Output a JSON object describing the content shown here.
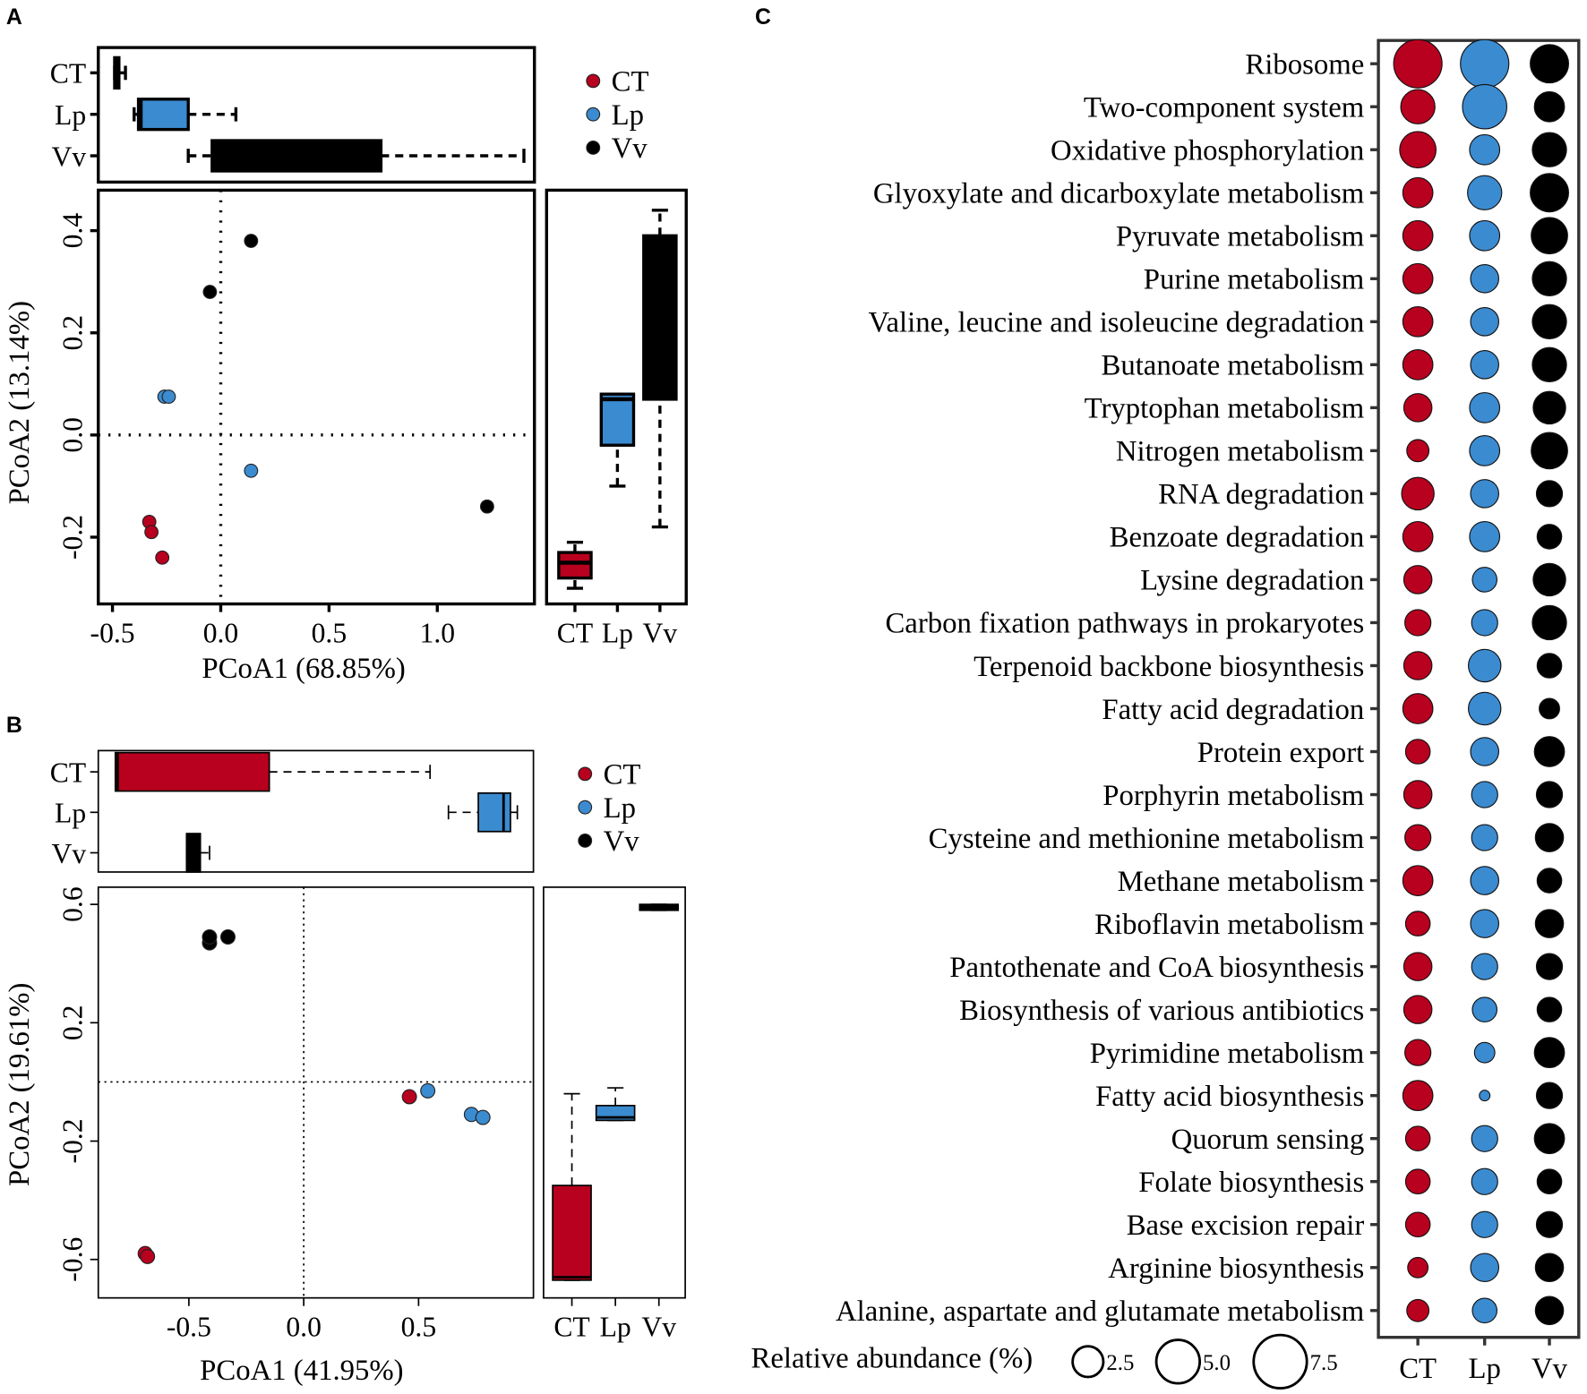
{
  "colors": {
    "CT": "#b8001f",
    "Lp": "#3b8bd0",
    "Vv": "#000000"
  },
  "panel_labels": {
    "A": "A",
    "B": "B",
    "C": "C"
  },
  "chart_data": [
    {
      "type": "scatter",
      "panel": "A",
      "xlabel": "PCoA1 (68.85%)",
      "ylabel": "PCoA2 (13.14%)",
      "xticks": [
        "-0.5",
        "0.0",
        "0.5",
        "1.0"
      ],
      "xtick_values": [
        -0.5,
        0.0,
        0.5,
        1.0
      ],
      "yticks": [
        "0.4",
        "0.2",
        "0.0",
        "-0.2"
      ],
      "ytick_values": [
        0.4,
        0.2,
        0.0,
        -0.2
      ],
      "legend": [
        "CT",
        "Lp",
        "Vv"
      ],
      "legend_position": "top-right",
      "series": [
        {
          "name": "CT",
          "points": [
            [
              -0.33,
              -0.17
            ],
            [
              -0.32,
              -0.19
            ],
            [
              -0.27,
              -0.24
            ]
          ]
        },
        {
          "name": "Lp",
          "points": [
            [
              -0.26,
              0.075
            ],
            [
              -0.24,
              0.075
            ],
            [
              0.14,
              -0.07
            ]
          ]
        },
        {
          "name": "Vv",
          "points": [
            [
              -0.05,
              0.28
            ],
            [
              0.14,
              0.38
            ],
            [
              1.23,
              -0.14
            ]
          ]
        }
      ],
      "top_boxplot": [
        {
          "group": "CT",
          "min": -0.49,
          "q1": -0.49,
          "median": -0.48,
          "q3": -0.47,
          "max": -0.44
        },
        {
          "group": "Lp",
          "min": -0.4,
          "q1": -0.38,
          "median": -0.37,
          "q3": -0.15,
          "max": 0.07
        },
        {
          "group": "Vv",
          "min": -0.15,
          "q1": -0.04,
          "median": 0.3,
          "q3": 0.74,
          "max": 1.4
        }
      ],
      "right_boxplot": [
        {
          "group": "CT",
          "min": -0.3,
          "q1": -0.28,
          "median": -0.25,
          "q3": -0.23,
          "max": -0.21
        },
        {
          "group": "Lp",
          "min": -0.1,
          "q1": -0.02,
          "median": 0.07,
          "q3": 0.08,
          "max": 0.08
        },
        {
          "group": "Vv",
          "min": -0.18,
          "q1": 0.07,
          "median": 0.38,
          "q3": 0.39,
          "max": 0.44
        }
      ],
      "box_labels": [
        "CT",
        "Lp",
        "Vv"
      ]
    },
    {
      "type": "scatter",
      "panel": "B",
      "xlabel": "PCoA1 (41.95%)",
      "ylabel": "PCoA2 (19.61%)",
      "xticks": [
        "-0.5",
        "0.0",
        "0.5"
      ],
      "xtick_values": [
        -0.5,
        0.0,
        0.5
      ],
      "yticks": [
        "0.6",
        "0.2",
        "-0.2",
        "-0.6"
      ],
      "ytick_values": [
        0.6,
        0.2,
        -0.2,
        -0.6
      ],
      "legend": [
        "CT",
        "Lp",
        "Vv"
      ],
      "legend_position": "top-right",
      "series": [
        {
          "name": "CT",
          "points": [
            [
              -0.69,
              -0.58
            ],
            [
              -0.68,
              -0.59
            ],
            [
              0.46,
              -0.05
            ]
          ]
        },
        {
          "name": "Lp",
          "points": [
            [
              0.54,
              -0.03
            ],
            [
              0.73,
              -0.11
            ],
            [
              0.78,
              -0.12
            ]
          ]
        },
        {
          "name": "Vv",
          "points": [
            [
              -0.41,
              0.47
            ],
            [
              -0.41,
              0.49
            ],
            [
              -0.33,
              0.49
            ]
          ]
        }
      ],
      "top_boxplot": [
        {
          "group": "CT",
          "min": -0.82,
          "q1": -0.82,
          "median": -0.81,
          "q3": -0.15,
          "max": 0.55
        },
        {
          "group": "Lp",
          "min": 0.63,
          "q1": 0.76,
          "median": 0.87,
          "q3": 0.9,
          "max": 0.93
        },
        {
          "group": "Vv",
          "min": -0.51,
          "q1": -0.51,
          "median": -0.48,
          "q3": -0.45,
          "max": -0.41
        }
      ],
      "right_boxplot": [
        {
          "group": "CT",
          "min": -0.67,
          "q1": -0.67,
          "median": -0.66,
          "q3": -0.35,
          "max": -0.04
        },
        {
          "group": "Lp",
          "min": -0.13,
          "q1": -0.13,
          "median": -0.12,
          "q3": -0.08,
          "max": -0.02
        },
        {
          "group": "Vv",
          "min": 0.58,
          "q1": 0.58,
          "median": 0.59,
          "q3": 0.6,
          "max": 0.6
        }
      ],
      "box_labels": [
        "CT",
        "Lp",
        "Vv"
      ]
    },
    {
      "type": "scatter",
      "subtype": "bubble",
      "panel": "C",
      "columns": [
        "CT",
        "Lp",
        "Vv"
      ],
      "size_legend_title": "Relative abundance (%)",
      "size_legend": [
        {
          "value": 2.5,
          "label": "2.5"
        },
        {
          "value": 5.0,
          "label": "5.0"
        },
        {
          "value": 7.5,
          "label": "7.5"
        }
      ],
      "rows": [
        {
          "pathway": "Ribosome",
          "values": [
            6.2,
            6.2,
            3.9
          ]
        },
        {
          "pathway": "Two-component system",
          "values": [
            3.1,
            5.2,
            2.4
          ]
        },
        {
          "pathway": "Oxidative phosphorylation",
          "values": [
            3.5,
            2.4,
            3.1
          ]
        },
        {
          "pathway": "Glyoxylate and dicarboxylate metabolism",
          "values": [
            2.4,
            3.1,
            3.9
          ]
        },
        {
          "pathway": "Pyruvate metabolism",
          "values": [
            2.4,
            2.4,
            3.5
          ]
        },
        {
          "pathway": "Purine metabolism",
          "values": [
            2.4,
            2.1,
            3.1
          ]
        },
        {
          "pathway": "Valine, leucine and isoleucine degradation",
          "values": [
            2.4,
            2.1,
            3.1
          ]
        },
        {
          "pathway": "Butanoate metabolism",
          "values": [
            2.4,
            2.1,
            3.1
          ]
        },
        {
          "pathway": "Tryptophan metabolism",
          "values": [
            2.1,
            2.4,
            2.8
          ]
        },
        {
          "pathway": "Nitrogen metabolism",
          "values": [
            1.3,
            2.4,
            3.5
          ]
        },
        {
          "pathway": "RNA degradation",
          "values": [
            2.8,
            2.1,
            1.8
          ]
        },
        {
          "pathway": "Benzoate degradation",
          "values": [
            2.4,
            2.4,
            1.6
          ]
        },
        {
          "pathway": "Lysine degradation",
          "values": [
            2.1,
            1.6,
            2.8
          ]
        },
        {
          "pathway": "Carbon fixation pathways in prokaryotes",
          "values": [
            1.8,
            1.8,
            3.1
          ]
        },
        {
          "pathway": "Terpenoid backbone biosynthesis",
          "values": [
            2.1,
            2.8,
            1.6
          ]
        },
        {
          "pathway": "Fatty acid degradation",
          "values": [
            2.4,
            2.8,
            1.1
          ]
        },
        {
          "pathway": "Protein export",
          "values": [
            1.6,
            2.1,
            2.4
          ]
        },
        {
          "pathway": "Porphyrin metabolism",
          "values": [
            2.1,
            1.8,
            1.8
          ]
        },
        {
          "pathway": "Cysteine and methionine metabolism",
          "values": [
            1.8,
            1.8,
            2.1
          ]
        },
        {
          "pathway": "Methane metabolism",
          "values": [
            2.4,
            2.1,
            1.6
          ]
        },
        {
          "pathway": "Riboflavin metabolism",
          "values": [
            1.6,
            2.1,
            2.1
          ]
        },
        {
          "pathway": "Pantothenate and CoA biosynthesis",
          "values": [
            2.1,
            1.8,
            1.8
          ]
        },
        {
          "pathway": "Biosynthesis of various antibiotics",
          "values": [
            2.1,
            1.6,
            1.6
          ]
        },
        {
          "pathway": "Pyrimidine metabolism",
          "values": [
            1.8,
            1.1,
            2.4
          ]
        },
        {
          "pathway": "Fatty acid biosynthesis",
          "values": [
            2.4,
            0.3,
            1.8
          ]
        },
        {
          "pathway": "Quorum sensing",
          "values": [
            1.6,
            1.8,
            2.4
          ]
        },
        {
          "pathway": "Folate biosynthesis",
          "values": [
            1.6,
            1.8,
            1.6
          ]
        },
        {
          "pathway": "Base excision repair",
          "values": [
            1.6,
            1.8,
            1.8
          ]
        },
        {
          "pathway": "Arginine biosynthesis",
          "values": [
            1.1,
            2.1,
            2.1
          ]
        },
        {
          "pathway": "Alanine, aspartate and glutamate metabolism",
          "values": [
            1.3,
            1.6,
            2.1
          ]
        }
      ]
    }
  ]
}
